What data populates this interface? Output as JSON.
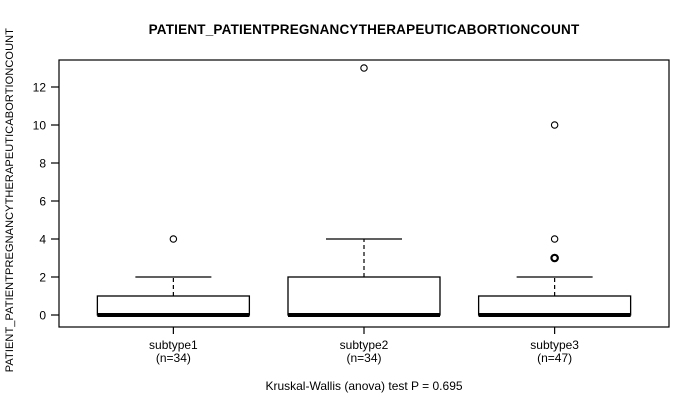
{
  "chart_data": {
    "type": "boxplot",
    "title": "PATIENT_PATIENTPREGNANCYTHERAPEUTICABORTIONCOUNT",
    "ylabel": "PATIENT_PATIENTPREGNANCYTHERAPEUTICABORTIONCOUNT",
    "footer": "Kruskal-Wallis (anova) test P = 0.695",
    "y_ticks": [
      0,
      2,
      4,
      6,
      8,
      10,
      12
    ],
    "ylim": [
      -0.7,
      13.5
    ],
    "grid": false,
    "legend": "none",
    "frame_color": "#000000",
    "line_color": "#000000",
    "box_fill": "#ffffff",
    "groups": [
      {
        "label": "subtype1",
        "sublabel": "(n=34)",
        "n": 34,
        "q1": 0,
        "median": 0,
        "q3": 1,
        "whisker_low": 0,
        "whisker_high": 2,
        "outliers": [
          4
        ],
        "bold_outliers": []
      },
      {
        "label": "subtype2",
        "sublabel": "(n=34)",
        "n": 34,
        "q1": 0,
        "median": 0,
        "q3": 2,
        "whisker_low": 0,
        "whisker_high": 4,
        "outliers": [
          13
        ],
        "bold_outliers": []
      },
      {
        "label": "subtype3",
        "sublabel": "(n=47)",
        "n": 47,
        "q1": 0,
        "median": 0,
        "q3": 1,
        "whisker_low": 0,
        "whisker_high": 2,
        "outliers": [
          3,
          4,
          10
        ],
        "bold_outliers": [
          3
        ]
      }
    ]
  }
}
